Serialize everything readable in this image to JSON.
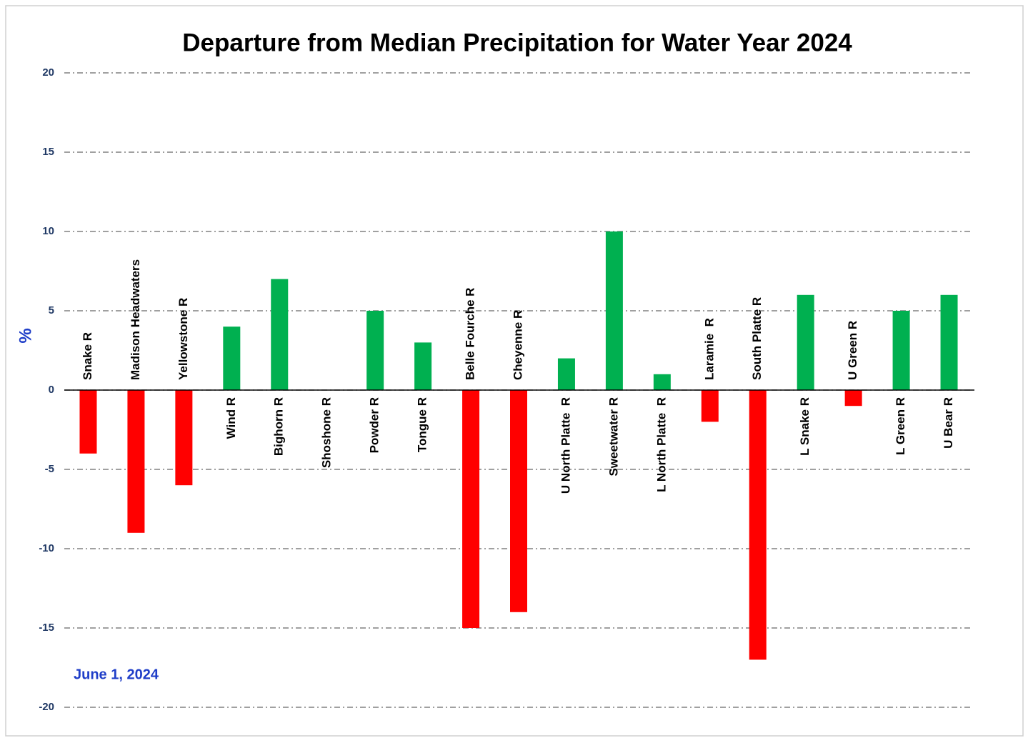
{
  "chart_data": {
    "type": "bar",
    "title": "Departure from Median Precipitation for Water Year 2024",
    "y_label": "%",
    "annotation": "June 1, 2024",
    "categories": [
      "Snake R",
      "Madison Headwaters",
      "Yellowstone R",
      "Wind R",
      "Bighorn R",
      "Shoshone R",
      "Powder R",
      "Tongue R",
      "Belle Fourche R",
      "Cheyenne R",
      "U North Platte  R",
      "Sweetwater R",
      "L North Platte  R",
      "Laramie  R",
      "South Platte R",
      "L Snake R",
      "U Green R",
      "L Green R",
      "U Bear R"
    ],
    "values": [
      -4,
      -9,
      -6,
      4,
      7,
      0,
      5,
      3,
      -15,
      -14,
      2,
      10,
      1,
      -2,
      -17,
      6,
      -1,
      5,
      6
    ],
    "positive_color": "#00b050",
    "negative_color": "#ff0000",
    "ylim": [
      -20,
      20
    ],
    "yticks": [
      -20,
      -15,
      -10,
      -5,
      0,
      5,
      10,
      15,
      20
    ],
    "grid": true
  }
}
